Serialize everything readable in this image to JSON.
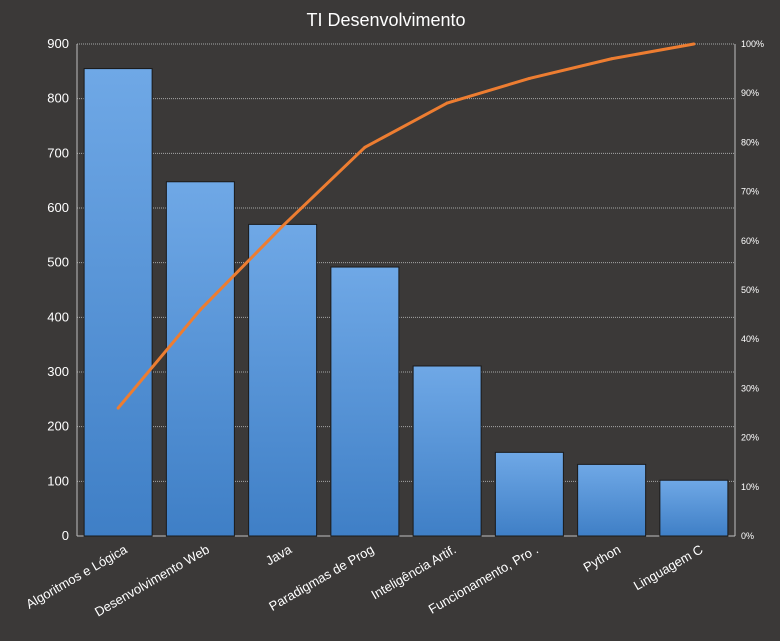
{
  "chart_data": {
    "type": "bar",
    "title": "TI Desenvolvimento",
    "categories": [
      "Algoritmos e Lógica",
      "Desenvolvimento Web",
      "Java",
      "Paradigmas de Prog",
      "Inteligência Artif.",
      "Funcionamento, Pro .",
      "Python",
      "Linguagem C"
    ],
    "values": [
      855,
      648,
      570,
      492,
      311,
      153,
      131,
      102
    ],
    "cumulative_percent": [
      26,
      46,
      63,
      79,
      88,
      93,
      97,
      100
    ],
    "ylim": [
      0,
      900
    ],
    "yticks": [
      "0",
      "100",
      "200",
      "300",
      "400",
      "500",
      "600",
      "700",
      "800",
      "900"
    ],
    "y2lim": [
      0,
      100
    ],
    "y2ticks": [
      "0%",
      "10%",
      "20%",
      "30%",
      "40%",
      "50%",
      "60%",
      "70%",
      "80%",
      "90%",
      "100%"
    ],
    "grid": true,
    "colors": {
      "bar": "#4f8fd8",
      "line": "#ed7d31",
      "background": "#3b3938",
      "grid": "#a6a6a6"
    }
  }
}
